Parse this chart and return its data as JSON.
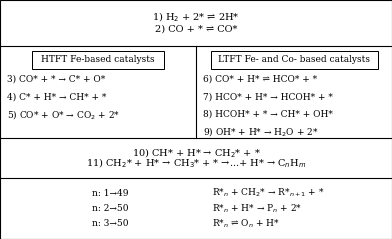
{
  "background_color": "#ffffff",
  "border_color": "#000000",
  "figsize": [
    3.92,
    2.39
  ],
  "dpi": 100,
  "top_section_lines": [
    "1) H$_2$ + 2* ⇌ 2H*",
    "2) CO + * ⇌ CO*"
  ],
  "left_box_title": "HTFT Fe-based catalysts",
  "right_box_title": "LTFT Fe- and Co- based catalysts",
  "left_reactions": [
    "3) CO* + * → C* + O*",
    "4) C* + H* → CH* + *",
    "5) CO* + O* → CO$_2$ + 2*"
  ],
  "right_reactions": [
    "6) CO* + H* ⇌ HCO* + *",
    "7) HCO* + H* → HCOH* + *",
    "8) HCOH* + * → CH* + OH*",
    "9) OH* + H* → H$_2$O + 2*"
  ],
  "bottom_section_lines": [
    "10) CH* + H* → CH$_2$* + *",
    "11) CH$_2$* + H* → CH$_3$* + * →...+ H* → C$_n$H$_m$"
  ],
  "chain_left": [
    "n: 1→49",
    "n: 2→50",
    "n: 3→50"
  ],
  "chain_right": [
    "R*$_n$ + CH$_2$* → R*$_{n+1}$ + *",
    "R*$_n$ + H* → P$_n$ + 2*",
    "R*$_n$ ⇌ O$_n$ + H*"
  ],
  "font_size": 7.0,
  "line_width": 0.8
}
